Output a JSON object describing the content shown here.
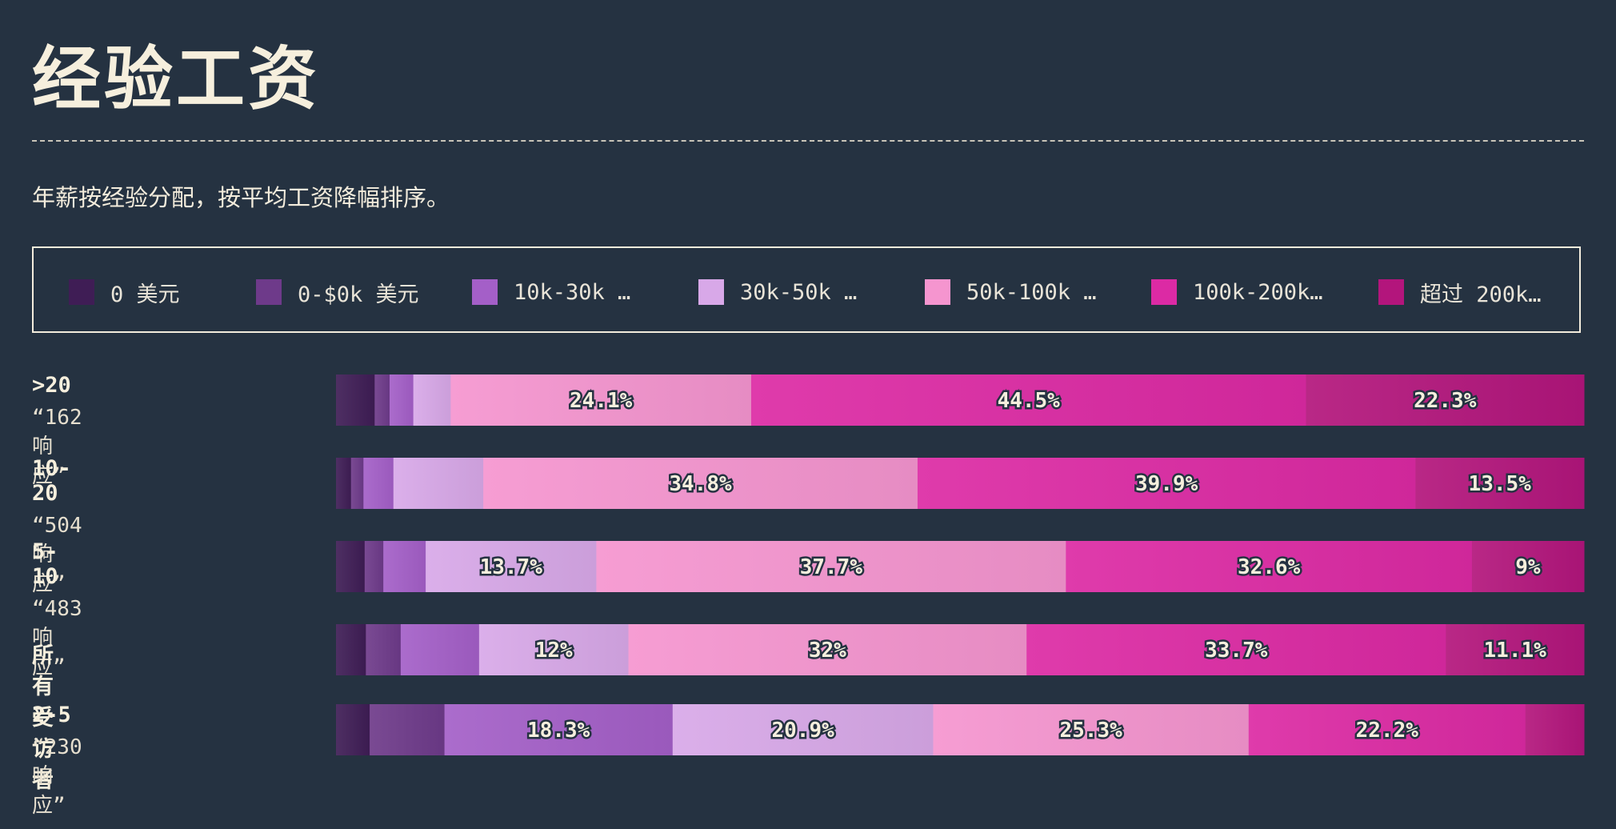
{
  "title": "经验工资",
  "subtitle": "年薪按经验分配，按平均工资降幅排序。",
  "legend": [
    {
      "label": "0 美元",
      "color": "#3f1d55"
    },
    {
      "label": "0-$0k 美元",
      "color": "#6e3a8a"
    },
    {
      "label": "10k-30k …",
      "color": "#a45fc8"
    },
    {
      "label": "30k-50k …",
      "color": "#d8a8e8"
    },
    {
      "label": "50k-100k …",
      "color": "#f595cf"
    },
    {
      "label": "100k-200k…",
      "color": "#dc2aa4"
    },
    {
      "label": "超过 200k…",
      "color": "#b3157c"
    }
  ],
  "chart_data": {
    "type": "bar",
    "orientation": "horizontal",
    "stacked": true,
    "normalized": true,
    "xlim": [
      0,
      100
    ],
    "series_names": [
      "0 美元",
      "0-$0k 美元",
      "10k-30k …",
      "30k-50k …",
      "50k-100k …",
      "100k-200k…",
      "超过 200k…"
    ],
    "categories": [
      ">20",
      "10-20",
      "5-10",
      "所有受访者",
      "2-5"
    ],
    "rows": [
      {
        "category": ">20",
        "responses": "“162响应”",
        "values": [
          3.1,
          1.2,
          1.9,
          3.0,
          24.1,
          44.5,
          22.3
        ],
        "labels": [
          "",
          "",
          "",
          "",
          "24.1%",
          "44.5%",
          "22.3%"
        ]
      },
      {
        "category": "10-20",
        "responses": "“504响应”",
        "values": [
          1.2,
          1.0,
          2.4,
          7.2,
          34.8,
          39.9,
          13.5
        ],
        "labels": [
          "",
          "",
          "",
          "",
          "34.8%",
          "39.9%",
          "13.5%"
        ]
      },
      {
        "category": "5-10",
        "responses": "“483响应”",
        "values": [
          2.3,
          1.5,
          3.4,
          13.7,
          37.7,
          32.6,
          9.0
        ],
        "labels": [
          "",
          "",
          "",
          "13.7%",
          "37.7%",
          "32.6%",
          "9%"
        ]
      },
      {
        "category": "所有受访者",
        "responses": "",
        "values": [
          2.4,
          2.8,
          6.3,
          12.0,
          32.0,
          33.7,
          11.1
        ],
        "labels": [
          "",
          "",
          "",
          "12%",
          "32%",
          "33.7%",
          "11.1%"
        ]
      },
      {
        "category": "2-5",
        "responses": "“230响应”",
        "values": [
          2.7,
          6.0,
          18.3,
          20.9,
          25.3,
          22.2,
          4.7
        ],
        "labels": [
          "",
          "",
          "18.3%",
          "20.9%",
          "25.3%",
          "22.2%",
          ""
        ]
      }
    ]
  }
}
